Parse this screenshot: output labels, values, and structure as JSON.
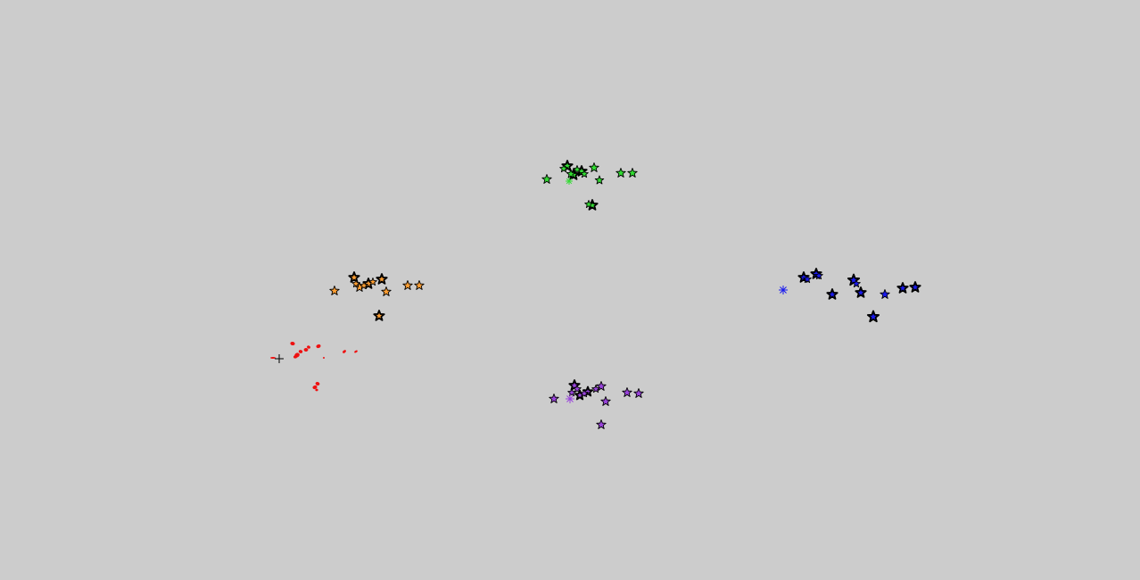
{
  "scene": {
    "background_color": "#cccccc",
    "star_outline_color": "#000000",
    "cursor_icon": "crosshair-cursor-icon",
    "cursor_color": "#000000"
  },
  "groups": [
    {
      "name": "green",
      "color": "#33dd33",
      "marker_icon": "asterisk-icon",
      "units": 14
    },
    {
      "name": "orange",
      "color": "#ff9f33",
      "marker_icon": "",
      "units": 12
    },
    {
      "name": "blue",
      "color": "#1a1aee",
      "marker_icon": "asterisk-icon",
      "units": 12
    },
    {
      "name": "purple",
      "color": "#9a44dd",
      "marker_icon": "asterisk-icon",
      "units": 13
    },
    {
      "name": "red",
      "color": "#ee1111",
      "marker_icon": "crosshair-cursor-icon",
      "units": 0
    }
  ]
}
